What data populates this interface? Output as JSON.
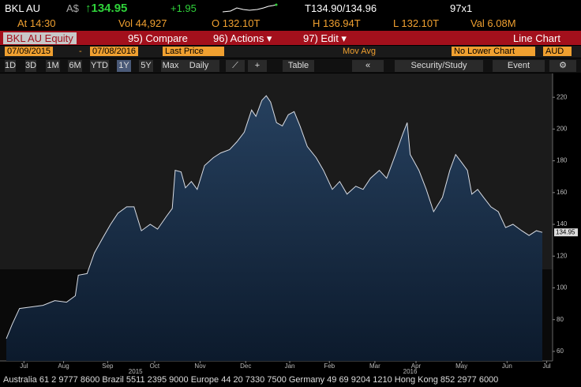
{
  "header": {
    "ticker": "BKL AU",
    "currency": "A$",
    "last": "↑134.95",
    "change": "+1.95",
    "bid_ask": "T134.90/134.96",
    "size": "97x1",
    "time": "At 14:30",
    "volume": "Vol 44,927",
    "open": "O 132.10T",
    "high": "H 136.94T",
    "low": "L 132.10T",
    "value": "Val 6.08M"
  },
  "menu": {
    "security": "BKL AU Equity",
    "compare": "95) Compare",
    "actions": "96) Actions ▾",
    "edit": "97) Edit ▾",
    "view": "Line Chart"
  },
  "settings": {
    "start": "07/09/2015",
    "separator": "-",
    "end": "07/08/2016",
    "field": "Last Price",
    "study": "Mov Avg",
    "lower": "No Lower Chart",
    "currency": "AUD"
  },
  "toolbar": {
    "periods": [
      "1D",
      "3D",
      "1M",
      "6M",
      "YTD",
      "1Y",
      "5Y",
      "Max"
    ],
    "frequency": "Daily",
    "table": "Table",
    "security_study": "Security/Study",
    "event": "Event"
  },
  "chart_data": {
    "type": "area",
    "x": [
      0,
      4,
      9,
      17,
      25,
      33,
      41,
      47,
      49,
      55,
      60,
      66,
      71,
      76,
      82,
      87,
      92,
      98,
      103,
      109,
      113,
      115,
      119,
      122,
      126,
      130,
      135,
      141,
      146,
      152,
      157,
      162,
      167,
      170,
      174,
      177,
      180,
      184,
      188,
      192,
      196,
      200,
      205,
      211,
      216,
      222,
      227,
      232,
      238,
      243,
      248,
      254,
      259,
      265,
      270,
      273,
      275,
      281,
      286,
      291,
      297,
      302,
      306,
      310,
      314,
      317,
      321,
      325,
      330,
      335,
      340,
      345,
      351,
      356,
      361,
      365
    ],
    "series": [
      {
        "name": "Last Price",
        "color": "#d8dce4",
        "values": [
          68,
          77,
          87,
          88,
          89,
          92,
          91,
          95,
          108,
          109,
          122,
          132,
          140,
          147,
          151,
          151,
          136,
          140,
          137,
          145,
          150,
          174,
          173,
          163,
          167,
          162,
          177,
          182,
          185,
          187,
          192,
          198,
          212,
          208,
          218,
          221,
          217,
          204,
          202,
          209,
          211,
          202,
          189,
          182,
          174,
          162,
          167,
          159,
          164,
          162,
          169,
          174,
          169,
          184,
          197,
          204,
          184,
          174,
          162,
          148,
          157,
          174,
          184,
          179,
          174,
          159,
          162,
          157,
          151,
          148,
          138,
          140,
          136,
          133,
          136,
          134.95
        ],
        "last_label": "134.95"
      }
    ],
    "xlim": [
      0,
      372
    ],
    "xticks": [
      {
        "value": 12,
        "label": "Jul"
      },
      {
        "value": 39,
        "label": "Aug"
      },
      {
        "value": 69,
        "label": "Sep"
      },
      {
        "value": 101,
        "label": "Oct"
      },
      {
        "value": 132,
        "label": "Nov"
      },
      {
        "value": 163,
        "label": "Dec"
      },
      {
        "value": 193,
        "label": "Jan"
      },
      {
        "value": 220,
        "label": "Feb"
      },
      {
        "value": 251,
        "label": "Mar"
      },
      {
        "value": 279,
        "label": "Apr"
      },
      {
        "value": 310,
        "label": "May"
      },
      {
        "value": 341,
        "label": "Jun"
      },
      {
        "value": 368,
        "label": "Jul"
      }
    ],
    "year_ticks": [
      {
        "value": 88,
        "label": "2015"
      },
      {
        "value": 275,
        "label": "2016"
      }
    ],
    "ylim": [
      54,
      235
    ],
    "yticks": [
      60,
      80,
      100,
      120,
      140,
      160,
      180,
      200,
      220
    ]
  },
  "footer": "Australia 61 2 9777 8600 Brazil 5511 2395 9000 Europe 44 20 7330 7500 Germany 49 69 9204 1210 Hong Kong 852 2977 6000"
}
